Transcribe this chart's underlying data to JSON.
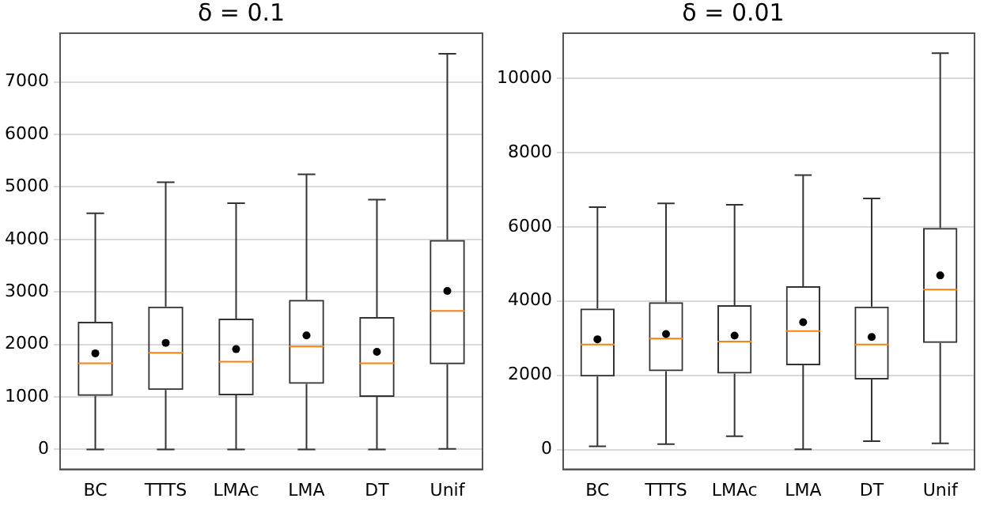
{
  "chart_data": [
    {
      "type": "box",
      "title": "δ = 0.1",
      "categories": [
        "BC",
        "TTTS",
        "LMAc",
        "LMA",
        "DT",
        "Unif"
      ],
      "ylim": [
        -380,
        7930
      ],
      "yticks": [
        0,
        1000,
        2000,
        3000,
        4000,
        5000,
        6000,
        7000
      ],
      "grid": "y",
      "boxes": [
        {
          "low": 0,
          "q1": 1020,
          "median": 1640,
          "q3": 2430,
          "high": 4500,
          "mean": 1830
        },
        {
          "low": 0,
          "q1": 1130,
          "median": 1840,
          "q3": 2720,
          "high": 5090,
          "mean": 2030
        },
        {
          "low": 0,
          "q1": 1030,
          "median": 1670,
          "q3": 2490,
          "high": 4690,
          "mean": 1910
        },
        {
          "low": 0,
          "q1": 1250,
          "median": 1960,
          "q3": 2850,
          "high": 5240,
          "mean": 2170
        },
        {
          "low": 0,
          "q1": 1000,
          "median": 1640,
          "q3": 2520,
          "high": 4760,
          "mean": 1860
        },
        {
          "low": 10,
          "q1": 1620,
          "median": 2640,
          "q3": 3990,
          "high": 7540,
          "mean": 3020
        }
      ]
    },
    {
      "type": "box",
      "title": "δ = 0.01",
      "categories": [
        "BC",
        "TTTS",
        "LMAc",
        "LMA",
        "DT",
        "Unif"
      ],
      "ylim": [
        -530,
        11210
      ],
      "yticks": [
        0,
        2000,
        4000,
        6000,
        8000,
        10000
      ],
      "grid": "y",
      "boxes": [
        {
          "low": 90,
          "q1": 1970,
          "median": 2830,
          "q3": 3800,
          "high": 6530,
          "mean": 2970
        },
        {
          "low": 150,
          "q1": 2110,
          "median": 2990,
          "q3": 3970,
          "high": 6630,
          "mean": 3110
        },
        {
          "low": 360,
          "q1": 2050,
          "median": 2910,
          "q3": 3890,
          "high": 6590,
          "mean": 3070
        },
        {
          "low": 10,
          "q1": 2270,
          "median": 3190,
          "q3": 4400,
          "high": 7390,
          "mean": 3430
        },
        {
          "low": 230,
          "q1": 1890,
          "median": 2830,
          "q3": 3850,
          "high": 6760,
          "mean": 3030
        },
        {
          "low": 170,
          "q1": 2870,
          "median": 4310,
          "q3": 5970,
          "high": 10670,
          "mean": 4690
        }
      ]
    }
  ]
}
